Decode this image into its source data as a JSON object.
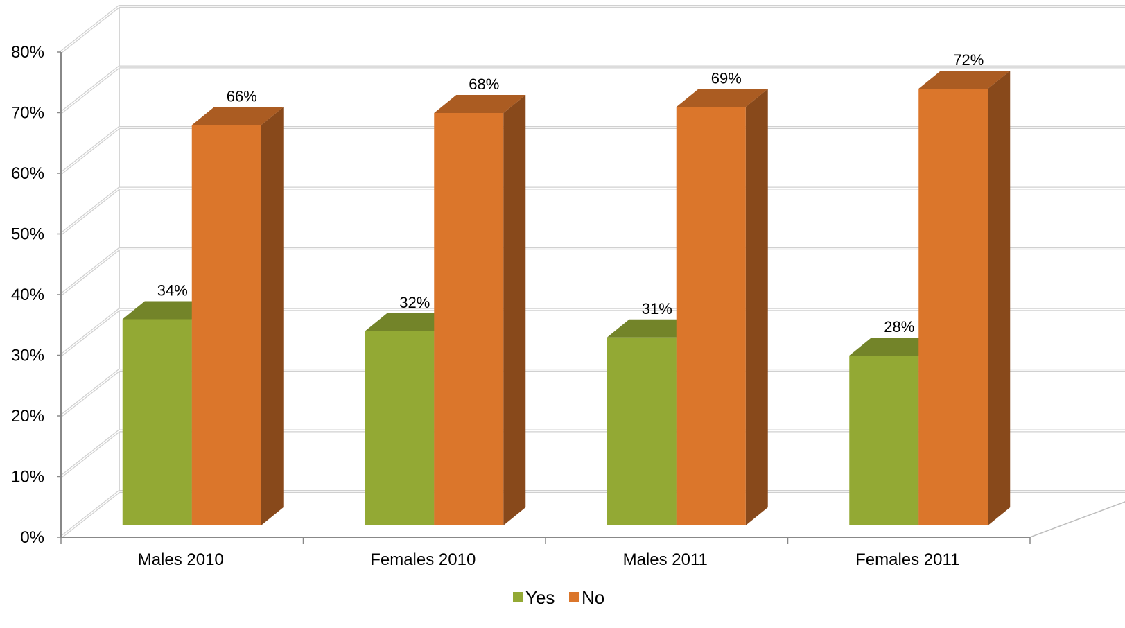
{
  "chart_data": {
    "type": "bar",
    "title": "",
    "xlabel": "",
    "ylabel": "",
    "categories": [
      "Males 2010",
      "Females 2010",
      "Males 2011",
      "Females 2011"
    ],
    "series": [
      {
        "name": "Yes",
        "values": [
          34,
          32,
          31,
          28
        ],
        "color": "#93a934"
      },
      {
        "name": "No",
        "values": [
          66,
          68,
          69,
          72
        ],
        "color": "#db762b"
      }
    ],
    "ylim": [
      0,
      80
    ],
    "yticks": [
      0,
      10,
      20,
      30,
      40,
      50,
      60,
      70,
      80
    ],
    "value_format": "percent",
    "grid": true,
    "legend_position": "bottom",
    "style": "3d-clustered"
  }
}
